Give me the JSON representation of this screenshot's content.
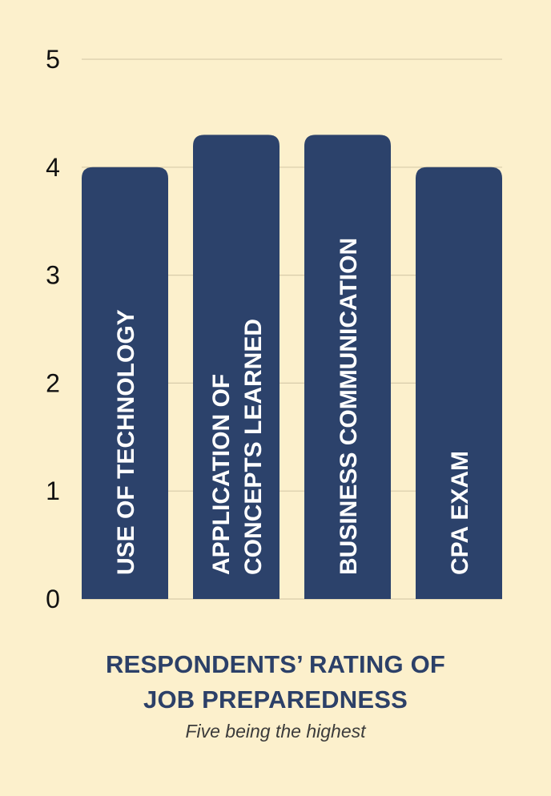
{
  "chart_data": {
    "type": "bar",
    "categories": [
      "USE OF TECHNOLOGY",
      "APPLICATION OF CONCEPTS LEARNED",
      "BUSINESS COMMUNICATION",
      "CPA EXAM"
    ],
    "category_lines": [
      [
        "USE OF TECHNOLOGY"
      ],
      [
        "APPLICATION OF",
        "CONCEPTS LEARNED"
      ],
      [
        "BUSINESS COMMUNICATION"
      ],
      [
        "CPA EXAM"
      ]
    ],
    "values": [
      4.0,
      4.3,
      4.3,
      4.0
    ],
    "title_lines": [
      "RESPONDENTS’ RATING OF",
      "JOB PREPAREDNESS"
    ],
    "subtitle": "Five being the highest",
    "ylim": [
      0,
      5
    ],
    "yticks": [
      "0",
      "1",
      "2",
      "3",
      "4",
      "5"
    ],
    "grid": true,
    "colors": {
      "bar": "#2c426b",
      "background": "#fcf0cc",
      "grid": "#d8ccaa",
      "title": "#2c4068"
    }
  }
}
